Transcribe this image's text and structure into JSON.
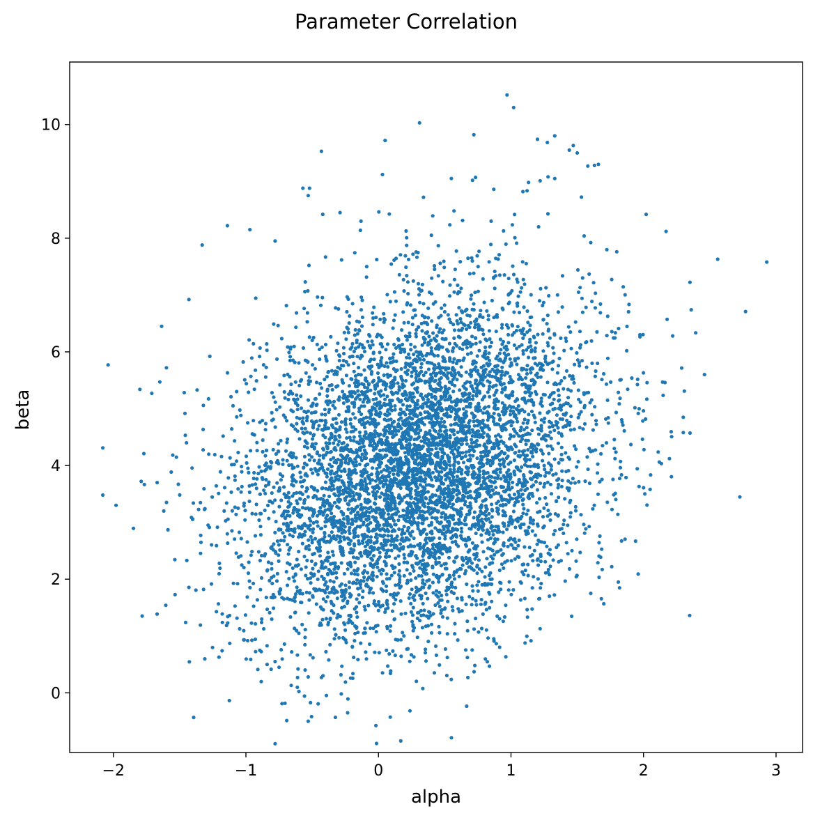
{
  "chart_data": {
    "type": "scatter",
    "title": "Parameter Correlation",
    "xlabel": "alpha",
    "ylabel": "beta",
    "xlim": [
      -2.33,
      3.2
    ],
    "ylim": [
      -1.05,
      11.1
    ],
    "xticks": [
      -2,
      -1,
      0,
      1,
      2,
      3
    ],
    "yticks": [
      0,
      2,
      4,
      6,
      8,
      10
    ],
    "xtick_labels": [
      "−2",
      "−1",
      "0",
      "1",
      "2",
      "3"
    ],
    "ytick_labels": [
      "0",
      "2",
      "4",
      "6",
      "8",
      "10"
    ],
    "grid": false,
    "legend": false,
    "color": "#1f77b4",
    "distribution": {
      "n_points": 6000,
      "mean": [
        0.3,
        4.0
      ],
      "std": [
        0.65,
        1.5
      ],
      "correlation": 0.25
    },
    "points_outliers": [
      [
        0.97,
        10.52
      ],
      [
        1.02,
        10.3
      ],
      [
        0.31,
        10.03
      ],
      [
        0.05,
        9.72
      ],
      [
        0.72,
        9.82
      ],
      [
        1.33,
        9.8
      ],
      [
        1.2,
        9.74
      ],
      [
        -0.43,
        9.53
      ],
      [
        1.44,
        9.55
      ],
      [
        1.47,
        9.63
      ],
      [
        1.5,
        9.5
      ],
      [
        1.58,
        9.27
      ],
      [
        1.63,
        9.28
      ],
      [
        1.66,
        9.3
      ],
      [
        0.03,
        9.12
      ],
      [
        0.55,
        9.05
      ],
      [
        1.22,
        9.01
      ],
      [
        1.28,
        9.08
      ],
      [
        1.33,
        9.05
      ],
      [
        -0.57,
        8.88
      ],
      [
        -0.52,
        8.88
      ],
      [
        -0.53,
        8.75
      ],
      [
        0.34,
        8.72
      ],
      [
        0.71,
        9.02
      ],
      [
        0.87,
        8.86
      ],
      [
        1.09,
        8.82
      ],
      [
        -0.42,
        8.42
      ],
      [
        -0.29,
        8.45
      ],
      [
        -1.14,
        8.22
      ],
      [
        -0.97,
        8.15
      ],
      [
        -1.33,
        7.88
      ],
      [
        -0.78,
        7.95
      ],
      [
        2.02,
        8.42
      ],
      [
        2.17,
        8.12
      ],
      [
        2.56,
        7.63
      ],
      [
        2.93,
        7.58
      ],
      [
        2.77,
        6.71
      ],
      [
        2.36,
        6.74
      ],
      [
        2.22,
        6.28
      ],
      [
        2.46,
        5.6
      ],
      [
        -1.43,
        6.92
      ],
      [
        -2.04,
        5.77
      ],
      [
        -1.6,
        5.72
      ],
      [
        -1.65,
        5.47
      ],
      [
        -1.8,
        5.34
      ],
      [
        -1.71,
        5.27
      ],
      [
        -2.08,
        4.31
      ],
      [
        -1.77,
        4.21
      ],
      [
        -2.08,
        3.48
      ],
      [
        -1.98,
        3.3
      ],
      [
        -1.67,
        3.7
      ],
      [
        -1.79,
        3.72
      ],
      [
        -1.62,
        3.2
      ],
      [
        -0.53,
        -0.5
      ],
      [
        -0.78,
        0.55
      ],
      [
        -0.75,
        0.45
      ],
      [
        -0.53,
        0.28
      ],
      [
        -0.43,
        0.27
      ],
      [
        -0.21,
        0.26
      ],
      [
        0.07,
        0.47
      ],
      [
        0.46,
        0.49
      ],
      [
        0.87,
        0.95
      ],
      [
        1.76,
        2.22
      ],
      [
        1.94,
        2.67
      ],
      [
        1.96,
        2.09
      ],
      [
        2.05,
        3.58
      ],
      [
        2.01,
        3.5
      ],
      [
        2.3,
        4.58
      ],
      [
        2.3,
        4.85
      ],
      [
        1.81,
        1.95
      ]
    ]
  }
}
